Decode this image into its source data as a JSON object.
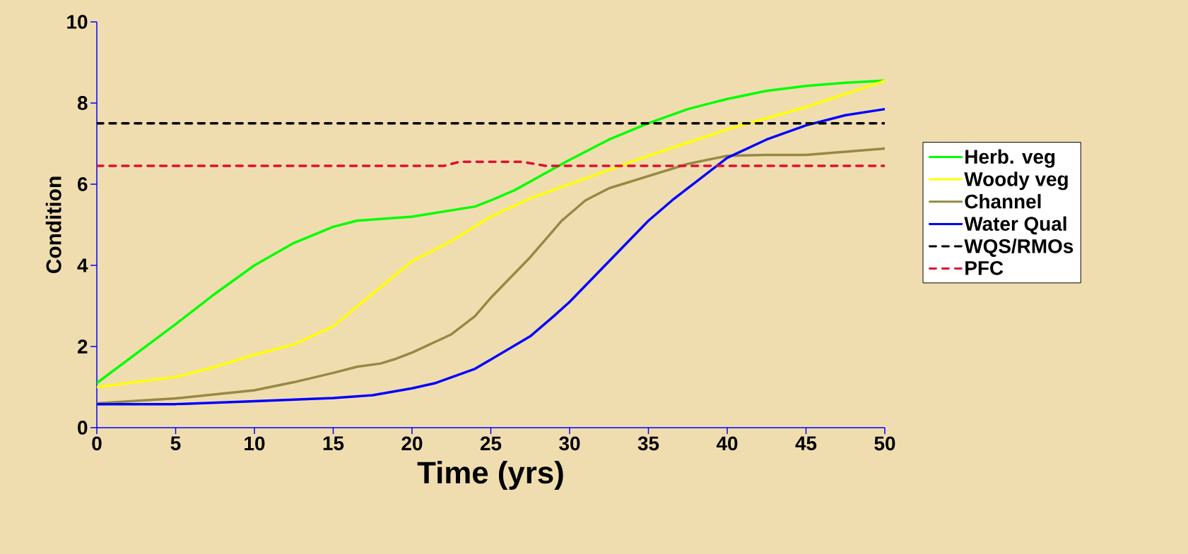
{
  "chart_data": {
    "type": "line",
    "xlabel": "Time (yrs)",
    "ylabel": "Condition",
    "xlim": [
      0,
      50
    ],
    "xticks": [
      0,
      5,
      10,
      15,
      20,
      25,
      30,
      35,
      40,
      45,
      50
    ],
    "ylim": [
      0,
      10
    ],
    "yticks": [
      0,
      2,
      4,
      6,
      8,
      10
    ],
    "grid": false,
    "legend": "right",
    "marker": "none",
    "line_style": "solid",
    "series": [
      {
        "name": "Herb. veg",
        "color": "#00ff00",
        "x": [
          0,
          5,
          7.5,
          10,
          12.5,
          15,
          16.5,
          20,
          24,
          25,
          26.5,
          30,
          32.5,
          35,
          37.5,
          40,
          42.5,
          45,
          47.5,
          50
        ],
        "values": [
          1.1,
          2.55,
          3.3,
          4.0,
          4.55,
          4.95,
          5.1,
          5.2,
          5.45,
          5.6,
          5.85,
          6.6,
          7.1,
          7.5,
          7.85,
          8.1,
          8.3,
          8.42,
          8.5,
          8.55
        ]
      },
      {
        "name": "Woody veg",
        "color": "#ffff00",
        "x": [
          0,
          5,
          7.5,
          10,
          12.5,
          15,
          17.5,
          20,
          22.5,
          25,
          27.5,
          30,
          35,
          40,
          45,
          50
        ],
        "values": [
          1.0,
          1.25,
          1.5,
          1.8,
          2.05,
          2.5,
          3.3,
          4.1,
          4.6,
          5.2,
          5.65,
          6.0,
          6.7,
          7.35,
          7.9,
          8.55
        ]
      },
      {
        "name": "Channel",
        "color": "#948a45",
        "x": [
          0,
          5,
          10,
          12.5,
          15,
          16.5,
          18,
          19,
          20,
          22.5,
          24,
          25,
          27.5,
          29.5,
          31,
          32.5,
          35,
          37.5,
          40,
          42.5,
          45,
          50
        ],
        "values": [
          0.6,
          0.72,
          0.92,
          1.12,
          1.35,
          1.5,
          1.58,
          1.7,
          1.85,
          2.3,
          2.75,
          3.2,
          4.2,
          5.1,
          5.6,
          5.9,
          6.2,
          6.5,
          6.7,
          6.72,
          6.72,
          6.88
        ]
      },
      {
        "name": "Water Qual",
        "color": "#0000ff",
        "x": [
          0,
          5,
          10,
          15,
          17.5,
          20,
          21.5,
          24,
          25,
          27.5,
          29,
          30,
          32.5,
          35,
          36.5,
          37.5,
          40,
          42.5,
          45,
          47.5,
          50
        ],
        "values": [
          0.58,
          0.58,
          0.65,
          0.73,
          0.8,
          0.97,
          1.1,
          1.45,
          1.68,
          2.25,
          2.75,
          3.1,
          4.1,
          5.1,
          5.6,
          5.9,
          6.65,
          7.1,
          7.45,
          7.7,
          7.85
        ]
      },
      {
        "name": "WQS/RMOs",
        "color": "#000000",
        "line_style": "dashed",
        "x": [
          0,
          50
        ],
        "values": [
          7.5,
          7.5
        ]
      },
      {
        "name": "PFC",
        "color": "#dd1133",
        "line_style": "dashed",
        "x": [
          0,
          22,
          23,
          27,
          28.5,
          50
        ],
        "values": [
          6.45,
          6.45,
          6.55,
          6.55,
          6.45,
          6.45
        ]
      }
    ]
  }
}
